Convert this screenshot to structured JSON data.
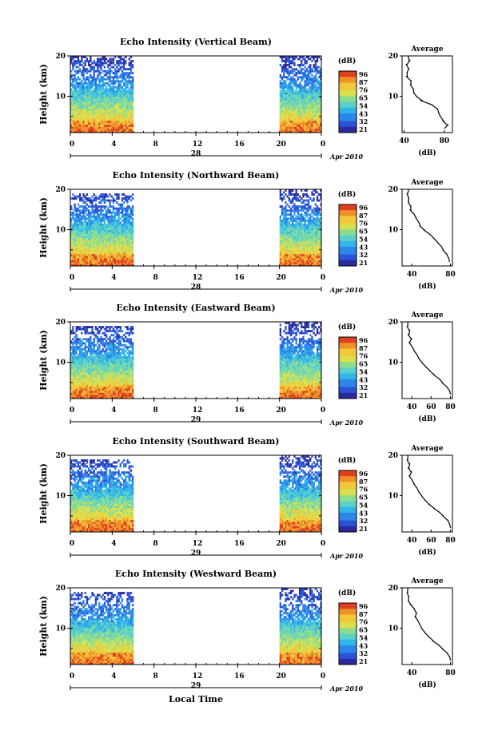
{
  "figure": {
    "x_axis_label": "Local Time",
    "date_label": "Apr 2010",
    "colorbar_unit": "(dB)",
    "colorbar_ticks": [
      "96",
      "87",
      "76",
      "65",
      "54",
      "43",
      "32",
      "21"
    ],
    "avg_title": "Average",
    "avg_xlabel": "(dB)"
  },
  "chart_data": [
    {
      "type": "heatmap",
      "title": "Echo Intensity (Vertical Beam)",
      "xlabel": "Local Time",
      "ylabel": "Height (km)",
      "x_ticks": [
        "0",
        "4",
        "8",
        "12",
        "16",
        "20",
        "0"
      ],
      "day_label": "28",
      "y_ticks": [
        "20",
        "10"
      ],
      "data_time_ranges_h": [
        [
          0,
          6
        ],
        [
          20,
          24
        ]
      ],
      "colorbar_label": "(dB)",
      "colorbar_ticks": [
        "96",
        "87",
        "76",
        "65",
        "54",
        "43",
        "32",
        "21"
      ],
      "profile_title": "Average",
      "profile_xlabel": "(dB)",
      "profile_x_ticks": [
        "40",
        "80"
      ],
      "profile_xlim": [
        38,
        88
      ],
      "profile": [
        [
          2,
          80
        ],
        [
          3,
          84
        ],
        [
          4,
          78
        ],
        [
          5,
          76
        ],
        [
          6,
          74
        ],
        [
          7,
          73
        ],
        [
          8,
          67
        ],
        [
          9,
          56
        ],
        [
          10,
          52
        ],
        [
          11,
          49
        ],
        [
          12,
          49
        ],
        [
          13,
          46
        ],
        [
          14,
          47
        ],
        [
          15,
          42
        ],
        [
          16,
          43
        ],
        [
          17,
          45
        ],
        [
          18,
          42
        ],
        [
          19,
          46
        ],
        [
          20,
          44
        ]
      ]
    },
    {
      "type": "heatmap",
      "title": "Echo Intensity (Northward Beam)",
      "xlabel": "Local Time",
      "ylabel": "Height (km)",
      "x_ticks": [
        "0",
        "4",
        "8",
        "12",
        "16",
        "20",
        "0"
      ],
      "day_label": "28",
      "y_ticks": [
        "20",
        "10"
      ],
      "data_time_ranges_h": [
        [
          0,
          6
        ],
        [
          20,
          24
        ]
      ],
      "colorbar_label": "(dB)",
      "colorbar_ticks": [
        "96",
        "87",
        "76",
        "65",
        "54",
        "43",
        "32",
        "21"
      ],
      "profile_title": "Average",
      "profile_xlabel": "(dB)",
      "profile_x_ticks": [
        "40",
        "80"
      ],
      "profile_xlim": [
        30,
        82
      ],
      "profile": [
        [
          2,
          79
        ],
        [
          3,
          78
        ],
        [
          4,
          76
        ],
        [
          5,
          72
        ],
        [
          6,
          70
        ],
        [
          7,
          66
        ],
        [
          8,
          62
        ],
        [
          9,
          58
        ],
        [
          10,
          52
        ],
        [
          11,
          48
        ],
        [
          12,
          47
        ],
        [
          13,
          44
        ],
        [
          14,
          42
        ],
        [
          15,
          38
        ],
        [
          16,
          39
        ],
        [
          17,
          36
        ],
        [
          18,
          37
        ],
        [
          19,
          35
        ],
        [
          20,
          37
        ]
      ]
    },
    {
      "type": "heatmap",
      "title": "Echo Intensity (Eastward Beam)",
      "xlabel": "Local Time",
      "ylabel": "Height (km)",
      "x_ticks": [
        "0",
        "4",
        "8",
        "12",
        "16",
        "20",
        "0"
      ],
      "day_label": "29",
      "y_ticks": [
        "20",
        "10"
      ],
      "data_time_ranges_h": [
        [
          0,
          6
        ],
        [
          20,
          24
        ]
      ],
      "colorbar_label": "(dB)",
      "colorbar_ticks": [
        "96",
        "87",
        "76",
        "65",
        "54",
        "43",
        "32",
        "21"
      ],
      "profile_title": "Average",
      "profile_xlabel": "(dB)",
      "profile_x_ticks": [
        "40",
        "60",
        "80"
      ],
      "profile_xlim": [
        30,
        82
      ],
      "profile": [
        [
          2,
          80
        ],
        [
          3,
          79
        ],
        [
          4,
          76
        ],
        [
          5,
          71
        ],
        [
          6,
          68
        ],
        [
          7,
          62
        ],
        [
          8,
          58
        ],
        [
          9,
          54
        ],
        [
          10,
          50
        ],
        [
          11,
          47
        ],
        [
          12,
          45
        ],
        [
          13,
          42
        ],
        [
          14,
          40
        ],
        [
          15,
          37
        ],
        [
          16,
          40
        ],
        [
          17,
          36
        ],
        [
          18,
          38
        ],
        [
          19,
          35
        ],
        [
          20,
          36
        ]
      ]
    },
    {
      "type": "heatmap",
      "title": "Echo Intensity (Southward Beam)",
      "xlabel": "Local Time",
      "ylabel": "Height (km)",
      "x_ticks": [
        "0",
        "4",
        "8",
        "12",
        "16",
        "20",
        "0"
      ],
      "day_label": "29",
      "y_ticks": [
        "20",
        "10"
      ],
      "data_time_ranges_h": [
        [
          0,
          6
        ],
        [
          20,
          24
        ]
      ],
      "colorbar_label": "(dB)",
      "colorbar_ticks": [
        "96",
        "87",
        "76",
        "65",
        "54",
        "43",
        "32",
        "21"
      ],
      "profile_title": "Average",
      "profile_xlabel": "(dB)",
      "profile_x_ticks": [
        "40",
        "60",
        "80"
      ],
      "profile_xlim": [
        30,
        82
      ],
      "profile": [
        [
          2,
          80
        ],
        [
          3,
          79
        ],
        [
          4,
          77
        ],
        [
          5,
          72
        ],
        [
          6,
          68
        ],
        [
          7,
          62
        ],
        [
          8,
          57
        ],
        [
          9,
          53
        ],
        [
          10,
          50
        ],
        [
          11,
          47
        ],
        [
          12,
          45
        ],
        [
          13,
          42
        ],
        [
          14,
          40
        ],
        [
          15,
          37
        ],
        [
          16,
          40
        ],
        [
          17,
          36
        ],
        [
          18,
          38
        ],
        [
          19,
          35
        ],
        [
          20,
          36
        ]
      ]
    },
    {
      "type": "heatmap",
      "title": "Echo Intensity (Westward Beam)",
      "xlabel": "Local Time",
      "ylabel": "Height (km)",
      "x_ticks": [
        "0",
        "4",
        "8",
        "12",
        "16",
        "20",
        "0"
      ],
      "day_label": "29",
      "y_ticks": [
        "20",
        "10"
      ],
      "data_time_ranges_h": [
        [
          0,
          6
        ],
        [
          20,
          24
        ]
      ],
      "colorbar_label": "(dB)",
      "colorbar_ticks": [
        "96",
        "87",
        "76",
        "65",
        "54",
        "43",
        "32",
        "21"
      ],
      "profile_title": "Average",
      "profile_xlabel": "(dB)",
      "profile_x_ticks": [
        "40",
        "80"
      ],
      "profile_xlim": [
        30,
        82
      ],
      "profile": [
        [
          2,
          80
        ],
        [
          3,
          79
        ],
        [
          4,
          76
        ],
        [
          5,
          71
        ],
        [
          6,
          67
        ],
        [
          7,
          61
        ],
        [
          8,
          57
        ],
        [
          9,
          53
        ],
        [
          10,
          50
        ],
        [
          11,
          48
        ],
        [
          12,
          46
        ],
        [
          13,
          43
        ],
        [
          14,
          45
        ],
        [
          15,
          42
        ],
        [
          16,
          38
        ],
        [
          17,
          36
        ],
        [
          18,
          37
        ],
        [
          19,
          35
        ],
        [
          20,
          36
        ]
      ]
    }
  ]
}
